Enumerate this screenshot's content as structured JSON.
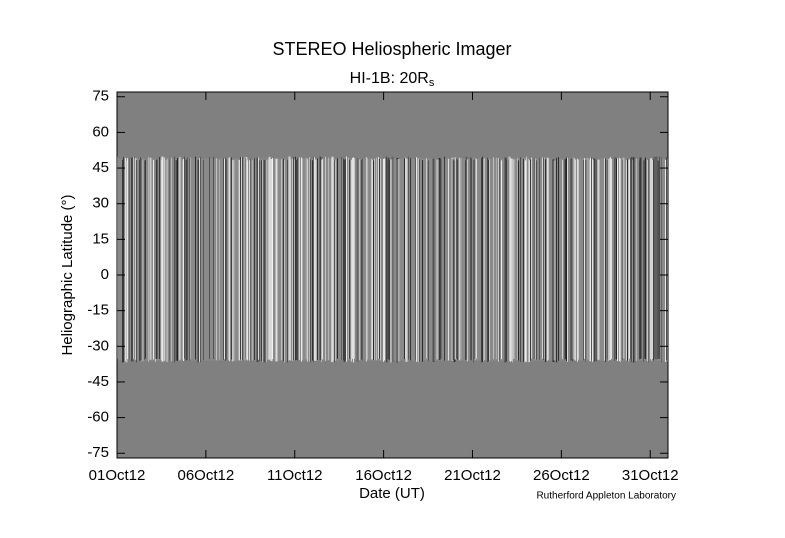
{
  "chart_data": {
    "type": "heatmap",
    "title": "STEREO Heliospheric Imager",
    "subtitle": {
      "text": "HI-1B: 20R",
      "subscript": "s"
    },
    "xlabel": "Date (UT)",
    "ylabel": "Heliographic Latitude (°)",
    "credit": "Rutherford Appleton Laboratory",
    "xlim": [
      1,
      32
    ],
    "xticks": [
      {
        "value": 1,
        "label": "01Oct12"
      },
      {
        "value": 6,
        "label": "06Oct12"
      },
      {
        "value": 11,
        "label": "11Oct12"
      },
      {
        "value": 16,
        "label": "16Oct12"
      },
      {
        "value": 21,
        "label": "21Oct12"
      },
      {
        "value": 26,
        "label": "26Oct12"
      },
      {
        "value": 31,
        "label": "31Oct12"
      }
    ],
    "ylim": [
      -77,
      77
    ],
    "yticks": [
      -75,
      -60,
      -45,
      -30,
      -15,
      0,
      15,
      30,
      45,
      60,
      75
    ],
    "data_extent": [
      -36,
      49
    ],
    "background_color": "#808080"
  }
}
